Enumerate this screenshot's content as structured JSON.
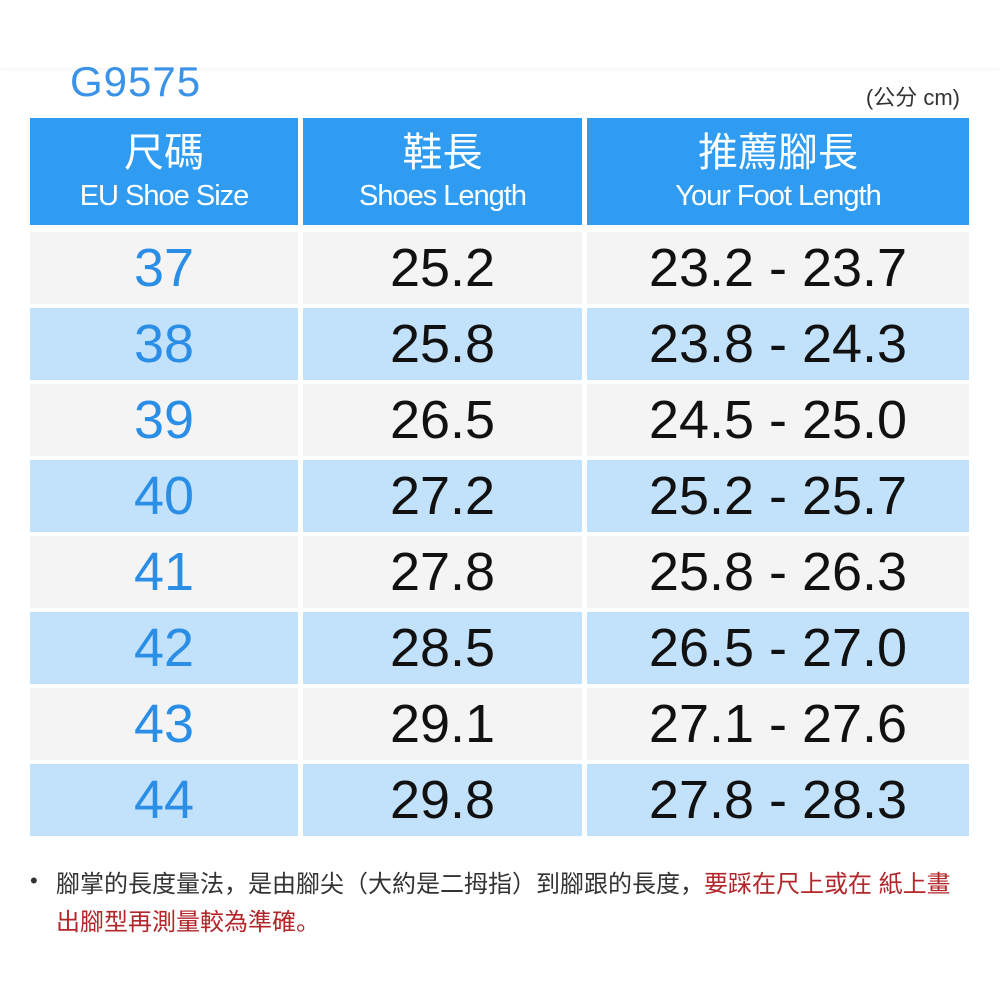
{
  "model": "G9575",
  "unit": "(公分 cm)",
  "colors": {
    "header": "#2f9cf2",
    "row_alt": "#c2e1fb",
    "size_text": "#2b8ee6",
    "warning_text": "#b3262a"
  },
  "headers": [
    {
      "zh": "尺碼",
      "en": "EU Shoe Size"
    },
    {
      "zh": "鞋長",
      "en": "Shoes Length"
    },
    {
      "zh": "推薦腳長",
      "en": "Your Foot Length"
    }
  ],
  "rows": [
    {
      "size": "37",
      "shoe_length": "25.2",
      "foot_length": "23.2 - 23.7"
    },
    {
      "size": "38",
      "shoe_length": "25.8",
      "foot_length": "23.8 - 24.3"
    },
    {
      "size": "39",
      "shoe_length": "26.5",
      "foot_length": "24.5 - 25.0"
    },
    {
      "size": "40",
      "shoe_length": "27.2",
      "foot_length": "25.2 - 25.7"
    },
    {
      "size": "41",
      "shoe_length": "27.8",
      "foot_length": "25.8 - 26.3"
    },
    {
      "size": "42",
      "shoe_length": "28.5",
      "foot_length": "26.5 - 27.0"
    },
    {
      "size": "43",
      "shoe_length": "29.1",
      "foot_length": "27.1 - 27.6"
    },
    {
      "size": "44",
      "shoe_length": "29.8",
      "foot_length": "27.8 - 28.3"
    }
  ],
  "note": {
    "bullet": "•",
    "text": "腳掌的長度量法，是由腳尖（大約是二拇指）到腳跟的長度，",
    "warning": "要踩在尺上或在 紙上畫出腳型再測量較為準確。"
  }
}
